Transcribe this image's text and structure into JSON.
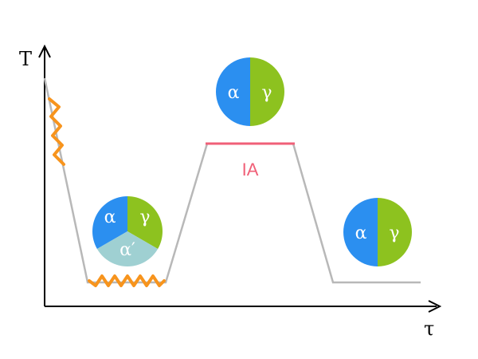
{
  "axes": {
    "y_label": "T",
    "x_label": "τ"
  },
  "colors": {
    "alpha": "#2b8ff0",
    "gamma": "#8dc21f",
    "alpha_prime": "#9fd0d2",
    "curve": "#b8b8b8",
    "wavy": "#f7941d",
    "ia": "#f06078",
    "axis": "#000000"
  },
  "stages": [
    {
      "id": "quenched",
      "phases": [
        "α",
        "γ",
        "α′"
      ]
    },
    {
      "id": "intercritical",
      "phases": [
        "α",
        "γ"
      ]
    },
    {
      "id": "final",
      "phases": [
        "α",
        "γ"
      ]
    }
  ],
  "annotation": {
    "ia": "IA"
  }
}
